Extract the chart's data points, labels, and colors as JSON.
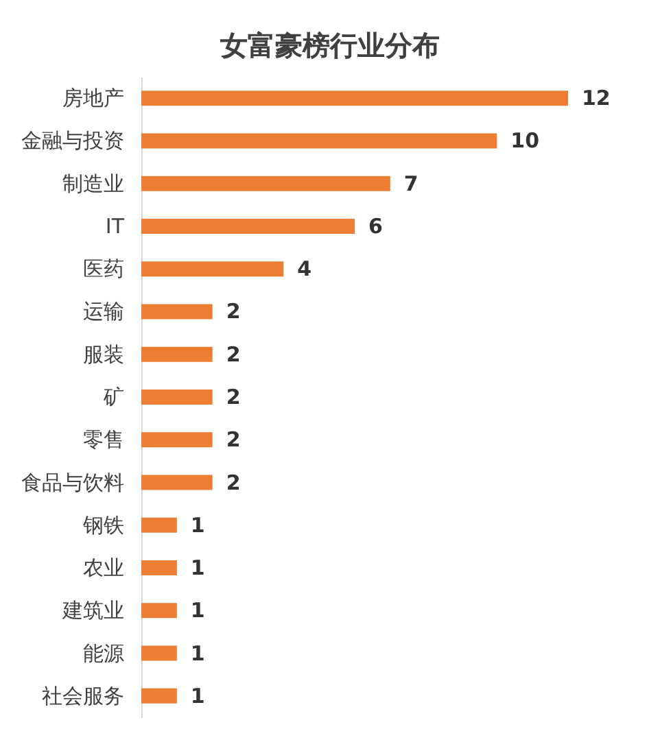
{
  "chart_data": {
    "type": "bar",
    "orientation": "horizontal",
    "title": "女富豪榜行业分布",
    "categories": [
      "房地产",
      "金融与投资",
      "制造业",
      "IT",
      "医药",
      "运输",
      "服装",
      "矿",
      "零售",
      "食品与饮料",
      "钢铁",
      "农业",
      "建筑业",
      "能源",
      "社会服务"
    ],
    "values": [
      12,
      10,
      7,
      6,
      4,
      2,
      2,
      2,
      2,
      2,
      1,
      1,
      1,
      1,
      1
    ],
    "color": "#ec7e34",
    "data_labels": true
  }
}
